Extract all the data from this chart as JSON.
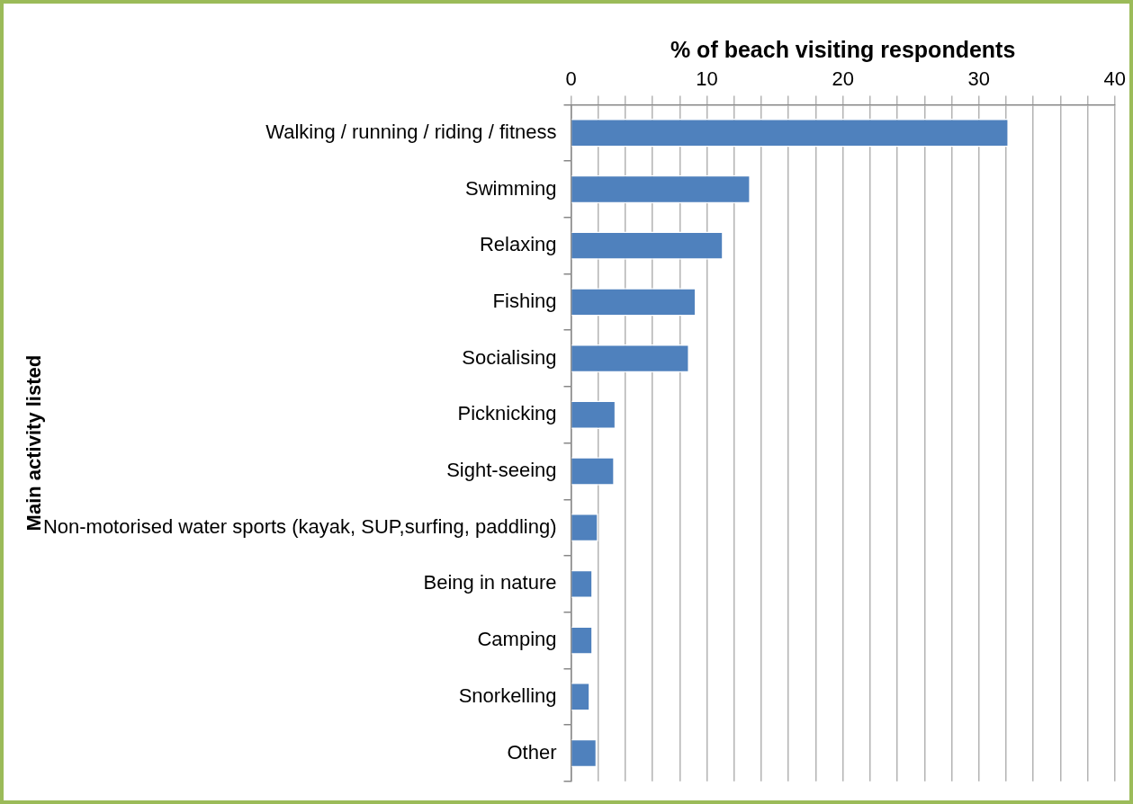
{
  "chart_data": {
    "type": "bar",
    "orientation": "horizontal",
    "xlabel": "% of beach visiting respondents",
    "ylabel": "Main activity listed",
    "categories": [
      "Walking / running / riding / fitness",
      "Swimming",
      "Relaxing",
      "Fishing",
      "Socialising",
      "Picknicking",
      "Sight-seeing",
      "Non-motorised water sports (kayak, SUP,surfing, paddling)",
      "Being in nature",
      "Camping",
      "Snorkelling",
      "Other"
    ],
    "values": [
      32.2,
      13.2,
      11.2,
      9.2,
      8.7,
      3.3,
      3.2,
      2.0,
      1.6,
      1.6,
      1.4,
      1.9
    ],
    "color": "#4f81bd",
    "xlim": [
      0,
      40
    ],
    "xticks": [
      0,
      {
        "value": 2,
        "label": null
      },
      {
        "value": 4,
        "label": null
      },
      {
        "value": 6,
        "label": null
      },
      {
        "value": 8,
        "label": null
      },
      10,
      {
        "value": 12,
        "label": null
      },
      {
        "value": 14,
        "label": null
      },
      {
        "value": 16,
        "label": null
      },
      {
        "value": 18,
        "label": null
      },
      20,
      {
        "value": 22,
        "label": null
      },
      {
        "value": 24,
        "label": null
      },
      {
        "value": 26,
        "label": null
      },
      {
        "value": 28,
        "label": null
      },
      30,
      {
        "value": 32,
        "label": null
      },
      {
        "value": 34,
        "label": null
      },
      {
        "value": 36,
        "label": null
      },
      {
        "value": 38,
        "label": null
      },
      40
    ],
    "grid": "x",
    "legend": false
  }
}
